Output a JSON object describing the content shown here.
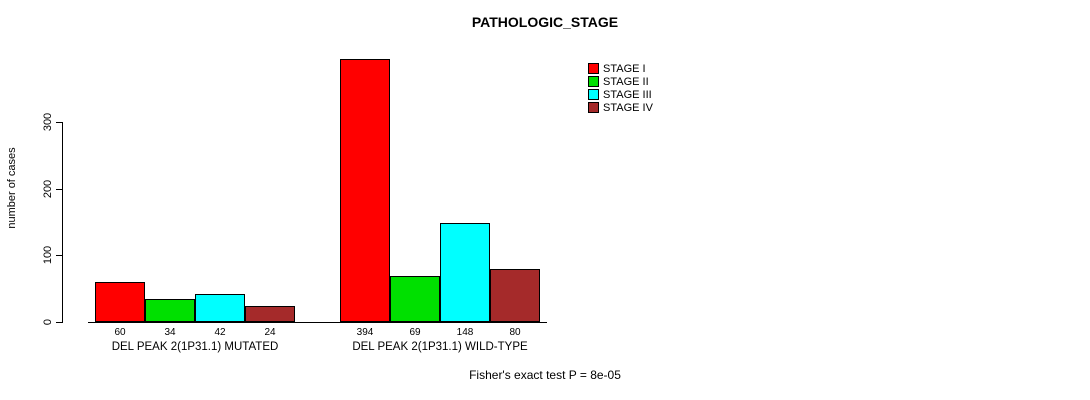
{
  "chart_data": {
    "type": "bar",
    "title": "PATHOLOGIC_STAGE",
    "ylabel": "number of cases",
    "xlabel": "",
    "categories": [
      "DEL PEAK 2(1P31.1) MUTATED",
      "DEL PEAK 2(1P31.1) WILD-TYPE"
    ],
    "series": [
      {
        "name": "STAGE I",
        "color": "#ff0000",
        "values": [
          60,
          394
        ]
      },
      {
        "name": "STAGE II",
        "color": "#00e000",
        "values": [
          34,
          69
        ]
      },
      {
        "name": "STAGE III",
        "color": "#00ffff",
        "values": [
          42,
          148
        ]
      },
      {
        "name": "STAGE IV",
        "color": "#a52a2a",
        "values": [
          24,
          80
        ]
      }
    ],
    "bar_value_labels": [
      [
        "60",
        "34",
        "42",
        "24"
      ],
      [
        "394",
        "69",
        "148",
        "80"
      ]
    ],
    "yticks": [
      0,
      100,
      200,
      300
    ],
    "ylim": [
      0,
      400
    ],
    "grid": false,
    "legend_position": "top-right",
    "annotation": "Fisher's exact test P = 8e-05"
  }
}
